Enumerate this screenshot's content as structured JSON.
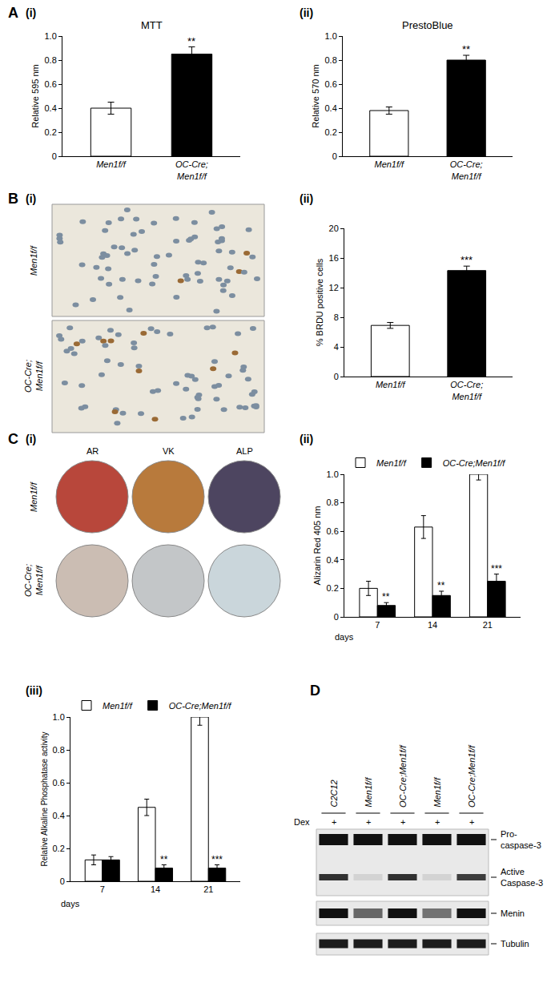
{
  "chart_data": [
    {
      "type": "bar",
      "title": "MTT",
      "ylabel": "Relative 595 nm",
      "categories": [
        "Men1f/f",
        "OC-Cre; Men1f/f"
      ],
      "values": [
        0.4,
        0.85
      ],
      "error": [
        0.05,
        0.06
      ],
      "colors": [
        "#ffffff",
        "#000000"
      ],
      "significance": [
        null,
        "**"
      ],
      "ylim": [
        0,
        1
      ],
      "yticks": [
        0,
        0.2,
        0.4,
        0.6,
        0.8,
        {
          "value": 1,
          "label": "1.0"
        }
      ],
      "grid": false
    },
    {
      "type": "bar",
      "title": "PrestoBlue",
      "ylabel": "Relative 570 nm",
      "categories": [
        "Men1f/f",
        "OC-Cre; Men1f/f"
      ],
      "values": [
        0.38,
        0.8
      ],
      "error": [
        0.03,
        0.04
      ],
      "colors": [
        "#ffffff",
        "#000000"
      ],
      "significance": [
        null,
        "**"
      ],
      "ylim": [
        0,
        1
      ],
      "yticks": [
        0,
        0.2,
        0.4,
        0.6,
        0.8,
        {
          "value": 1,
          "label": "1.0"
        }
      ],
      "grid": false
    },
    {
      "type": "bar",
      "ylabel": "% BRDU positive cells",
      "categories": [
        "Men1f/f",
        "OC-Cre; Men1f/f"
      ],
      "values": [
        6.9,
        14.3
      ],
      "error": [
        0.4,
        0.6
      ],
      "colors": [
        "#ffffff",
        "#000000"
      ],
      "significance": [
        null,
        "***"
      ],
      "ylim": [
        0,
        20
      ],
      "yticks": [
        0,
        4,
        8,
        12,
        16,
        20
      ],
      "grid": false
    },
    {
      "type": "bar",
      "ylabel": "Alizarin Red 405 nm",
      "xlabel": "days",
      "categories": [
        "7",
        "14",
        "21"
      ],
      "series": [
        {
          "name": "Men1f/f",
          "color": "#ffffff",
          "values": [
            0.2,
            0.63,
            1.0
          ],
          "error": [
            0.05,
            0.08,
            0.04
          ]
        },
        {
          "name": "OC-Cre;Men1f/f",
          "color": "#000000",
          "values": [
            0.08,
            0.15,
            0.25
          ],
          "error": [
            0.02,
            0.03,
            0.05
          ],
          "significance": [
            "**",
            "**",
            "***"
          ]
        }
      ],
      "legend": "top left",
      "ylim": [
        0,
        1
      ],
      "yticks": [
        0,
        0.2,
        0.4,
        0.6,
        0.8,
        {
          "value": 1,
          "label": "1.0"
        }
      ],
      "grid": false
    },
    {
      "type": "bar",
      "ylabel": "Relative Alkaline Phosphatase activity",
      "xlabel": "days",
      "categories": [
        "7",
        "14",
        "21"
      ],
      "series": [
        {
          "name": "Men1f/f",
          "color": "#ffffff",
          "values": [
            0.13,
            0.45,
            1.0
          ],
          "error": [
            0.03,
            0.05,
            0.05
          ]
        },
        {
          "name": "OC-Cre;Men1f/f",
          "color": "#000000",
          "values": [
            0.13,
            0.08,
            0.08
          ],
          "error": [
            0.02,
            0.02,
            0.02
          ],
          "significance": [
            null,
            "**",
            "***"
          ]
        }
      ],
      "legend": "top left",
      "ylim": [
        0,
        1
      ],
      "yticks": [
        0,
        0.2,
        0.4,
        0.6,
        0.8,
        {
          "value": 1,
          "label": "1.0"
        }
      ],
      "grid": false
    }
  ],
  "panel_labels": [
    {
      "letter": "A",
      "subpanels": [
        "(i)",
        "(ii)"
      ]
    },
    {
      "letter": "B",
      "subpanels": [
        "(i)",
        "(ii)"
      ]
    },
    {
      "letter": "C",
      "subpanels": [
        "(i)",
        "(ii)",
        "(iii)"
      ]
    },
    {
      "letter": "D",
      "subpanels": []
    }
  ],
  "micrograph": {
    "rows": [
      "Men1f/f",
      "OC-Cre; Men1f/f"
    ]
  },
  "plates": {
    "columns": [
      "AR",
      "VK",
      "ALP"
    ],
    "rows": [
      "Men1f/f",
      "OC-Cre; Men1f/f"
    ],
    "colors": [
      [
        "#b8473b",
        "#b87a3c",
        "#4d4560"
      ],
      [
        "#cbbdb3",
        "#c3c6c8",
        "#cad6db"
      ]
    ]
  },
  "western_blot": {
    "lanes": [
      "C2C12",
      "Men1f/f",
      "OC-Cre;Men1f/f",
      "Men1f/f",
      "OC-Cre;Men1f/f"
    ],
    "treatment": "Dex",
    "treatment_marks": [
      "+",
      "+",
      "+",
      "+",
      "+"
    ],
    "bands": [
      {
        "label": [
          "Pro-",
          "caspase-3"
        ],
        "intensity": [
          1,
          1,
          1,
          1,
          1
        ]
      },
      {
        "label": [
          "Active",
          "Caspase-3"
        ],
        "intensity": [
          0.85,
          0.1,
          0.85,
          0.1,
          0.8
        ]
      },
      {
        "label": [
          "Menin"
        ],
        "intensity": [
          1,
          0.6,
          1,
          0.55,
          1
        ]
      },
      {
        "label": [
          "Tubulin"
        ],
        "intensity": [
          0.95,
          0.95,
          0.95,
          0.95,
          0.95
        ]
      }
    ]
  }
}
